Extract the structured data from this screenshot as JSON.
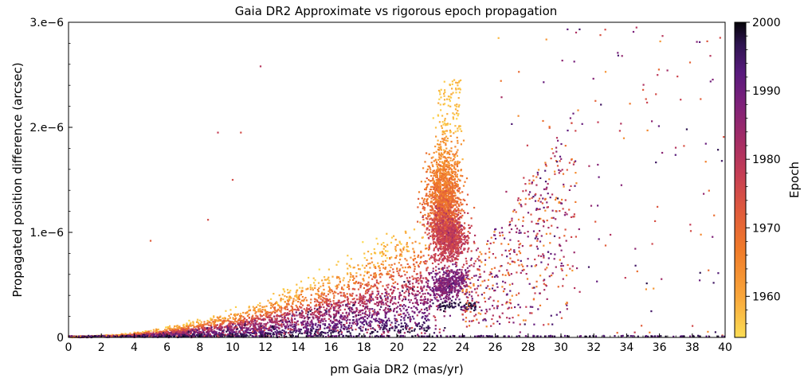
{
  "chart_data": {
    "type": "scatter",
    "title": "Gaia DR2 Approximate vs rigorous epoch propagation",
    "xlabel": "pm Gaia DR2 (mas/yr)",
    "ylabel": "Propagated position difference (arcsec)",
    "xlim": [
      0,
      40
    ],
    "ylim": [
      0,
      3e-06
    ],
    "xticks": [
      0,
      2,
      4,
      6,
      8,
      10,
      12,
      14,
      16,
      18,
      20,
      22,
      24,
      26,
      28,
      30,
      32,
      34,
      36,
      38,
      40
    ],
    "xtick_labels": [
      "0",
      "2",
      "4",
      "6",
      "8",
      "10",
      "12",
      "14",
      "16",
      "18",
      "20",
      "22",
      "24",
      "26",
      "28",
      "30",
      "32",
      "34",
      "36",
      "38",
      "40"
    ],
    "yticks": [
      0,
      1e-06,
      2e-06,
      3e-06
    ],
    "ytick_labels": [
      "0",
      "1.e−6",
      "2.e−6",
      "3.e−6"
    ],
    "grid": false,
    "colorbar": {
      "label": "Epoch",
      "range": [
        1954,
        2000
      ],
      "ticks": [
        1960,
        1970,
        1980,
        1990,
        2000
      ],
      "tick_labels": [
        "1960",
        "1970",
        "1980",
        "1990",
        "2000"
      ],
      "colormap": "inferno_r"
    },
    "sample_points": [
      {
        "x": 9.1,
        "y": 1.95e-06,
        "epoch": 1978
      },
      {
        "x": 10.5,
        "y": 1.95e-06,
        "epoch": 1975
      },
      {
        "x": 11.7,
        "y": 2.58e-06,
        "epoch": 1980
      },
      {
        "x": 10.0,
        "y": 1.5e-06,
        "epoch": 1975
      },
      {
        "x": 5.0,
        "y": 9.2e-07,
        "epoch": 1972
      },
      {
        "x": 8.5,
        "y": 1.12e-06,
        "epoch": 1975
      },
      {
        "x": 23.5,
        "y": 2.45e-06,
        "epoch": 1958
      },
      {
        "x": 26.2,
        "y": 2.85e-06,
        "epoch": 1958
      },
      {
        "x": 32.7,
        "y": 2.93e-06,
        "epoch": 1975
      },
      {
        "x": 34.6,
        "y": 2.95e-06,
        "epoch": 1980
      },
      {
        "x": 39.1,
        "y": 2.68e-06,
        "epoch": 1980
      },
      {
        "x": 39.8,
        "y": 1.68e-06,
        "epoch": 1995
      },
      {
        "x": 39.3,
        "y": 5.2e-07,
        "epoch": 1995
      },
      {
        "x": 31.7,
        "y": 6.7e-07,
        "epoch": 1995
      }
    ]
  }
}
